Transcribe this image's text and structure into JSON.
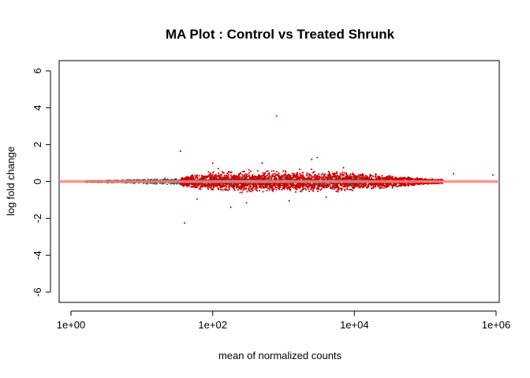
{
  "chart_data": {
    "type": "scatter",
    "title": "MA Plot : Control vs Treated Shrunk",
    "xlabel": "mean of normalized counts",
    "ylabel": "log fold change",
    "x_scale": "log10",
    "xlim": [
      1,
      1000000
    ],
    "ylim": [
      -6,
      6
    ],
    "x_ticks": [
      1,
      100,
      10000,
      1000000
    ],
    "x_tick_labels": [
      "1e+00",
      "1e+02",
      "1e+04",
      "1e+06"
    ],
    "y_ticks": [
      -6,
      -4,
      -2,
      0,
      2,
      4,
      6
    ],
    "y_tick_labels": [
      "-6",
      "-4",
      "-2",
      "0",
      "2",
      "4",
      "6"
    ],
    "reference_line": {
      "y": 0,
      "color": "#ff7f7f"
    },
    "grid": false,
    "series": [
      {
        "color": "#4d4d4d",
        "description_points": [
          [
            2,
            0.02
          ],
          [
            3,
            -0.05
          ],
          [
            5,
            0.1
          ],
          [
            8,
            -0.1
          ],
          [
            12,
            0.15
          ],
          [
            20,
            -0.18
          ],
          [
            30,
            0.22
          ],
          [
            50,
            -0.25
          ],
          [
            80,
            0.2
          ],
          [
            150,
            -0.15
          ],
          [
            300,
            0.1
          ],
          [
            800,
            -0.12
          ],
          [
            2000,
            0.08
          ],
          [
            5000,
            -0.1
          ],
          [
            10000,
            0.06
          ],
          [
            30000,
            -0.05
          ],
          [
            60000,
            0.04
          ]
        ]
      },
      {
        "color": "#cc0000",
        "description_points": [
          [
            35,
            1.65
          ],
          [
            40,
            0.5
          ],
          [
            60,
            -0.6
          ],
          [
            80,
            -1.3
          ],
          [
            120,
            0.8
          ],
          [
            180,
            -1.5
          ],
          [
            300,
            1.1
          ],
          [
            500,
            -1.2
          ],
          [
            800,
            3.55
          ],
          [
            1000,
            0.9
          ],
          [
            1500,
            -0.9
          ],
          [
            2500,
            1.2
          ],
          [
            3500,
            -1.0
          ],
          [
            5000,
            0.7
          ],
          [
            8000,
            -0.6
          ],
          [
            15000,
            0.4
          ],
          [
            40,
            -2.25
          ],
          [
            250000,
            0.4
          ],
          [
            800000,
            0.3
          ]
        ]
      }
    ]
  }
}
